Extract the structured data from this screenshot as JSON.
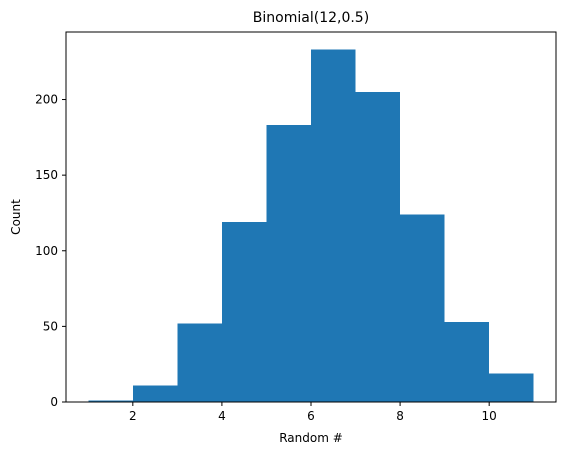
{
  "chart_data": {
    "type": "bar",
    "title": "Binomial(12,0.5)",
    "xlabel": "Random #",
    "ylabel": "Count",
    "bins": [
      {
        "start": 1,
        "end": 2,
        "value": 1
      },
      {
        "start": 2,
        "end": 3,
        "value": 11
      },
      {
        "start": 3,
        "end": 4,
        "value": 52
      },
      {
        "start": 4,
        "end": 5,
        "value": 119
      },
      {
        "start": 5,
        "end": 6,
        "value": 183
      },
      {
        "start": 6,
        "end": 7,
        "value": 233
      },
      {
        "start": 7,
        "end": 8,
        "value": 205
      },
      {
        "start": 8,
        "end": 9,
        "value": 124
      },
      {
        "start": 9,
        "end": 10,
        "value": 53
      },
      {
        "start": 10,
        "end": 11,
        "value": 19
      }
    ],
    "xlim": [
      0.5,
      11.5
    ],
    "ylim": [
      0,
      244.65
    ],
    "x_ticks": [
      2,
      4,
      6,
      8,
      10
    ],
    "y_ticks": [
      0,
      50,
      100,
      150,
      200
    ],
    "grid": false,
    "bar_color": "#1f77b4"
  }
}
